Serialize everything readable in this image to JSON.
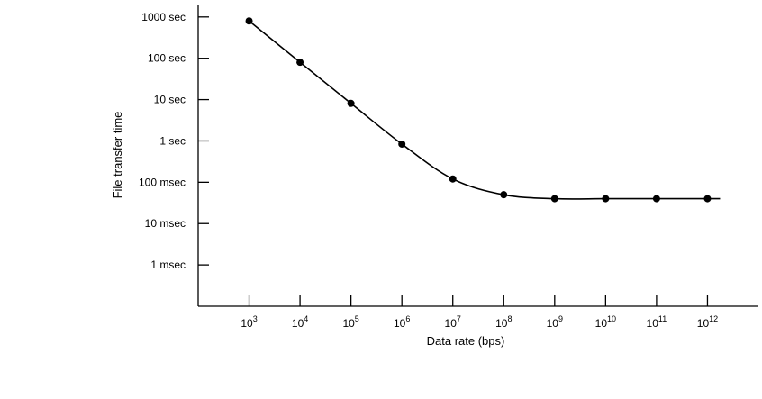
{
  "chart_data": {
    "type": "line",
    "title": "",
    "xlabel": "Data rate (bps)",
    "ylabel": "File transfer time",
    "x_scale": "log",
    "y_scale": "log",
    "xlim": [
      100,
      10000000000000
    ],
    "ylim": [
      0.0001,
      2000
    ],
    "grid": false,
    "x_ticks": [
      {
        "value": 1000,
        "base": "10",
        "exp": "3"
      },
      {
        "value": 10000,
        "base": "10",
        "exp": "4"
      },
      {
        "value": 100000,
        "base": "10",
        "exp": "5"
      },
      {
        "value": 1000000,
        "base": "10",
        "exp": "6"
      },
      {
        "value": 10000000,
        "base": "10",
        "exp": "7"
      },
      {
        "value": 100000000,
        "base": "10",
        "exp": "8"
      },
      {
        "value": 1000000000,
        "base": "10",
        "exp": "9"
      },
      {
        "value": 10000000000,
        "base": "10",
        "exp": "10"
      },
      {
        "value": 100000000000,
        "base": "10",
        "exp": "11"
      },
      {
        "value": 1000000000000,
        "base": "10",
        "exp": "12"
      }
    ],
    "y_ticks": [
      {
        "value": 1000,
        "label": "1000 sec"
      },
      {
        "value": 100,
        "label": "100 sec"
      },
      {
        "value": 10,
        "label": "10 sec"
      },
      {
        "value": 1,
        "label": "1 sec"
      },
      {
        "value": 0.1,
        "label": "100 msec"
      },
      {
        "value": 0.01,
        "label": "10 msec"
      },
      {
        "value": 0.001,
        "label": "1 msec"
      }
    ],
    "series": [
      {
        "x": [
          1000,
          10000,
          100000,
          1000000,
          10000000,
          100000000,
          1000000000,
          10000000000,
          100000000000,
          1000000000000
        ],
        "y": [
          800,
          80,
          8.1,
          0.84,
          0.12,
          0.05,
          0.04,
          0.04,
          0.04,
          0.04
        ]
      }
    ]
  },
  "colors": {
    "line": "#000000",
    "axis": "#000000",
    "rule": "#1a3d8c"
  }
}
